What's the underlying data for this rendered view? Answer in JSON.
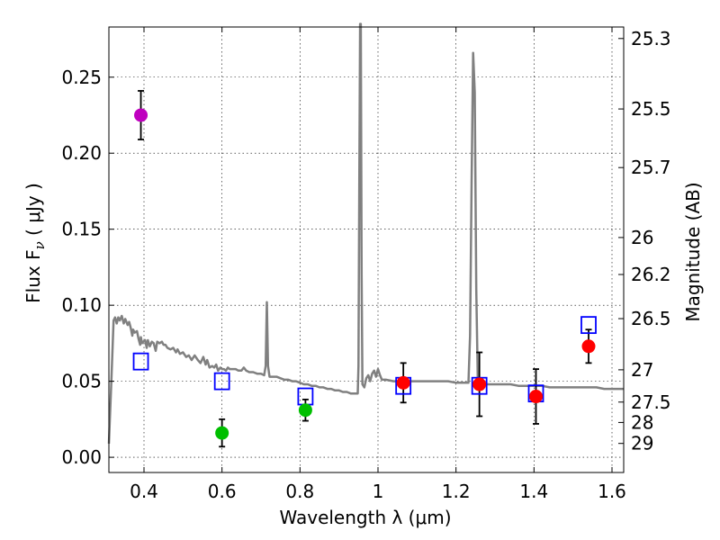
{
  "chart_data": {
    "type": "scatter",
    "xlabel": "Wavelength  λ (μm)",
    "ylabel": "Flux  F",
    "ylabel_sub": "ν",
    "ylabel_unit": "  ( μJy )",
    "y2label": "Magnitude (AB)",
    "xlim": [
      0.31,
      1.63
    ],
    "ylim": [
      -0.01,
      0.283
    ],
    "grid": true,
    "xticks": [
      0.4,
      0.6,
      0.8,
      1.0,
      1.2,
      1.4,
      1.6
    ],
    "xtick_labels": [
      "0.4",
      "0.6",
      "0.8",
      "1",
      "1.2",
      "1.4",
      "1.6"
    ],
    "yticks": [
      0.0,
      0.05,
      0.1,
      0.15,
      0.2,
      0.25
    ],
    "ytick_labels": [
      "0.00",
      "0.05",
      "0.10",
      "0.15",
      "0.20",
      "0.25"
    ],
    "y2ticks": [
      {
        "label": "25.3",
        "mag": 25.3
      },
      {
        "label": "25.5",
        "mag": 25.5
      },
      {
        "label": "25.7",
        "mag": 25.7
      },
      {
        "label": "26",
        "mag": 26.0
      },
      {
        "label": "26.2",
        "mag": 26.2
      },
      {
        "label": "26.5",
        "mag": 26.5
      },
      {
        "label": "27",
        "mag": 27.0
      },
      {
        "label": "27.5",
        "mag": 27.5
      },
      {
        "label": "28",
        "mag": 28.0
      },
      {
        "label": "29",
        "mag": 29.0
      }
    ],
    "measured_points": [
      {
        "x": 0.392,
        "y": 0.225,
        "err": 0.016,
        "color": "#bf00bf"
      },
      {
        "x": 0.6,
        "y": 0.016,
        "err": 0.009,
        "color": "#00bf00"
      },
      {
        "x": 0.814,
        "y": 0.031,
        "err": 0.007,
        "color": "#00bf00"
      },
      {
        "x": 1.065,
        "y": 0.049,
        "err": 0.013,
        "color": "#ff0000"
      },
      {
        "x": 1.26,
        "y": 0.048,
        "err": 0.021,
        "color": "#ff0000"
      },
      {
        "x": 1.405,
        "y": 0.04,
        "err": 0.018,
        "color": "#ff0000"
      },
      {
        "x": 1.54,
        "y": 0.073,
        "err": 0.011,
        "color": "#ff0000"
      }
    ],
    "model_points": [
      {
        "x": 0.392,
        "y": 0.063
      },
      {
        "x": 0.6,
        "y": 0.05
      },
      {
        "x": 0.814,
        "y": 0.04
      },
      {
        "x": 1.065,
        "y": 0.047
      },
      {
        "x": 1.26,
        "y": 0.047
      },
      {
        "x": 1.405,
        "y": 0.042
      },
      {
        "x": 1.54,
        "y": 0.087
      }
    ],
    "model_color": "#0000ff",
    "spectrum_color": "#808080",
    "spectrum": [
      [
        0.31,
        0.009
      ],
      [
        0.316,
        0.048
      ],
      [
        0.322,
        0.09
      ],
      [
        0.326,
        0.092
      ],
      [
        0.33,
        0.088
      ],
      [
        0.334,
        0.092
      ],
      [
        0.338,
        0.09
      ],
      [
        0.343,
        0.093
      ],
      [
        0.348,
        0.088
      ],
      [
        0.352,
        0.091
      ],
      [
        0.358,
        0.087
      ],
      [
        0.362,
        0.089
      ],
      [
        0.366,
        0.085
      ],
      [
        0.37,
        0.08
      ],
      [
        0.372,
        0.084
      ],
      [
        0.376,
        0.082
      ],
      [
        0.382,
        0.083
      ],
      [
        0.386,
        0.078
      ],
      [
        0.39,
        0.074
      ],
      [
        0.392,
        0.079
      ],
      [
        0.395,
        0.075
      ],
      [
        0.398,
        0.076
      ],
      [
        0.403,
        0.077
      ],
      [
        0.407,
        0.072
      ],
      [
        0.41,
        0.077
      ],
      [
        0.415,
        0.073
      ],
      [
        0.42,
        0.076
      ],
      [
        0.425,
        0.075
      ],
      [
        0.43,
        0.07
      ],
      [
        0.434,
        0.076
      ],
      [
        0.44,
        0.075
      ],
      [
        0.446,
        0.076
      ],
      [
        0.45,
        0.074
      ],
      [
        0.455,
        0.074
      ],
      [
        0.46,
        0.072
      ],
      [
        0.468,
        0.071
      ],
      [
        0.475,
        0.072
      ],
      [
        0.482,
        0.069
      ],
      [
        0.486,
        0.071
      ],
      [
        0.492,
        0.068
      ],
      [
        0.5,
        0.069
      ],
      [
        0.508,
        0.066
      ],
      [
        0.515,
        0.067
      ],
      [
        0.522,
        0.064
      ],
      [
        0.53,
        0.067
      ],
      [
        0.538,
        0.064
      ],
      [
        0.545,
        0.062
      ],
      [
        0.552,
        0.066
      ],
      [
        0.558,
        0.061
      ],
      [
        0.562,
        0.064
      ],
      [
        0.568,
        0.059
      ],
      [
        0.575,
        0.06
      ],
      [
        0.58,
        0.059
      ],
      [
        0.585,
        0.061
      ],
      [
        0.59,
        0.057
      ],
      [
        0.596,
        0.059
      ],
      [
        0.6,
        0.058
      ],
      [
        0.605,
        0.058
      ],
      [
        0.61,
        0.057
      ],
      [
        0.615,
        0.059
      ],
      [
        0.62,
        0.058
      ],
      [
        0.628,
        0.058
      ],
      [
        0.635,
        0.058
      ],
      [
        0.642,
        0.057
      ],
      [
        0.65,
        0.057
      ],
      [
        0.656,
        0.059
      ],
      [
        0.662,
        0.057
      ],
      [
        0.67,
        0.056
      ],
      [
        0.68,
        0.056
      ],
      [
        0.69,
        0.055
      ],
      [
        0.7,
        0.055
      ],
      [
        0.708,
        0.054
      ],
      [
        0.712,
        0.06
      ],
      [
        0.715,
        0.102
      ],
      [
        0.718,
        0.06
      ],
      [
        0.722,
        0.053
      ],
      [
        0.73,
        0.053
      ],
      [
        0.74,
        0.053
      ],
      [
        0.75,
        0.052
      ],
      [
        0.76,
        0.051
      ],
      [
        0.77,
        0.051
      ],
      [
        0.78,
        0.05
      ],
      [
        0.79,
        0.05
      ],
      [
        0.8,
        0.049
      ],
      [
        0.81,
        0.048
      ],
      [
        0.82,
        0.048
      ],
      [
        0.83,
        0.047
      ],
      [
        0.84,
        0.047
      ],
      [
        0.85,
        0.046
      ],
      [
        0.86,
        0.046
      ],
      [
        0.87,
        0.045
      ],
      [
        0.88,
        0.045
      ],
      [
        0.89,
        0.044
      ],
      [
        0.9,
        0.044
      ],
      [
        0.91,
        0.043
      ],
      [
        0.92,
        0.043
      ],
      [
        0.93,
        0.042
      ],
      [
        0.94,
        0.042
      ],
      [
        0.948,
        0.042
      ],
      [
        0.95,
        0.06
      ],
      [
        0.952,
        0.18
      ],
      [
        0.954,
        0.285
      ],
      [
        0.956,
        0.285
      ],
      [
        0.958,
        0.12
      ],
      [
        0.96,
        0.048
      ],
      [
        0.965,
        0.046
      ],
      [
        0.97,
        0.052
      ],
      [
        0.975,
        0.054
      ],
      [
        0.98,
        0.05
      ],
      [
        0.985,
        0.055
      ],
      [
        0.99,
        0.057
      ],
      [
        0.995,
        0.053
      ],
      [
        1.0,
        0.058
      ],
      [
        1.005,
        0.054
      ],
      [
        1.01,
        0.051
      ],
      [
        1.02,
        0.051
      ],
      [
        1.04,
        0.05
      ],
      [
        1.06,
        0.05
      ],
      [
        1.08,
        0.05
      ],
      [
        1.1,
        0.05
      ],
      [
        1.12,
        0.05
      ],
      [
        1.14,
        0.05
      ],
      [
        1.16,
        0.05
      ],
      [
        1.18,
        0.05
      ],
      [
        1.2,
        0.049
      ],
      [
        1.22,
        0.049
      ],
      [
        1.232,
        0.049
      ],
      [
        1.236,
        0.08
      ],
      [
        1.24,
        0.18
      ],
      [
        1.244,
        0.266
      ],
      [
        1.248,
        0.24
      ],
      [
        1.252,
        0.11
      ],
      [
        1.256,
        0.05
      ],
      [
        1.26,
        0.048
      ],
      [
        1.28,
        0.048
      ],
      [
        1.3,
        0.048
      ],
      [
        1.32,
        0.048
      ],
      [
        1.34,
        0.048
      ],
      [
        1.36,
        0.047
      ],
      [
        1.38,
        0.047
      ],
      [
        1.4,
        0.047
      ],
      [
        1.42,
        0.047
      ],
      [
        1.44,
        0.046
      ],
      [
        1.46,
        0.046
      ],
      [
        1.48,
        0.046
      ],
      [
        1.5,
        0.046
      ],
      [
        1.52,
        0.046
      ],
      [
        1.54,
        0.046
      ],
      [
        1.56,
        0.046
      ],
      [
        1.58,
        0.045
      ],
      [
        1.6,
        0.045
      ],
      [
        1.63,
        0.045
      ]
    ]
  }
}
